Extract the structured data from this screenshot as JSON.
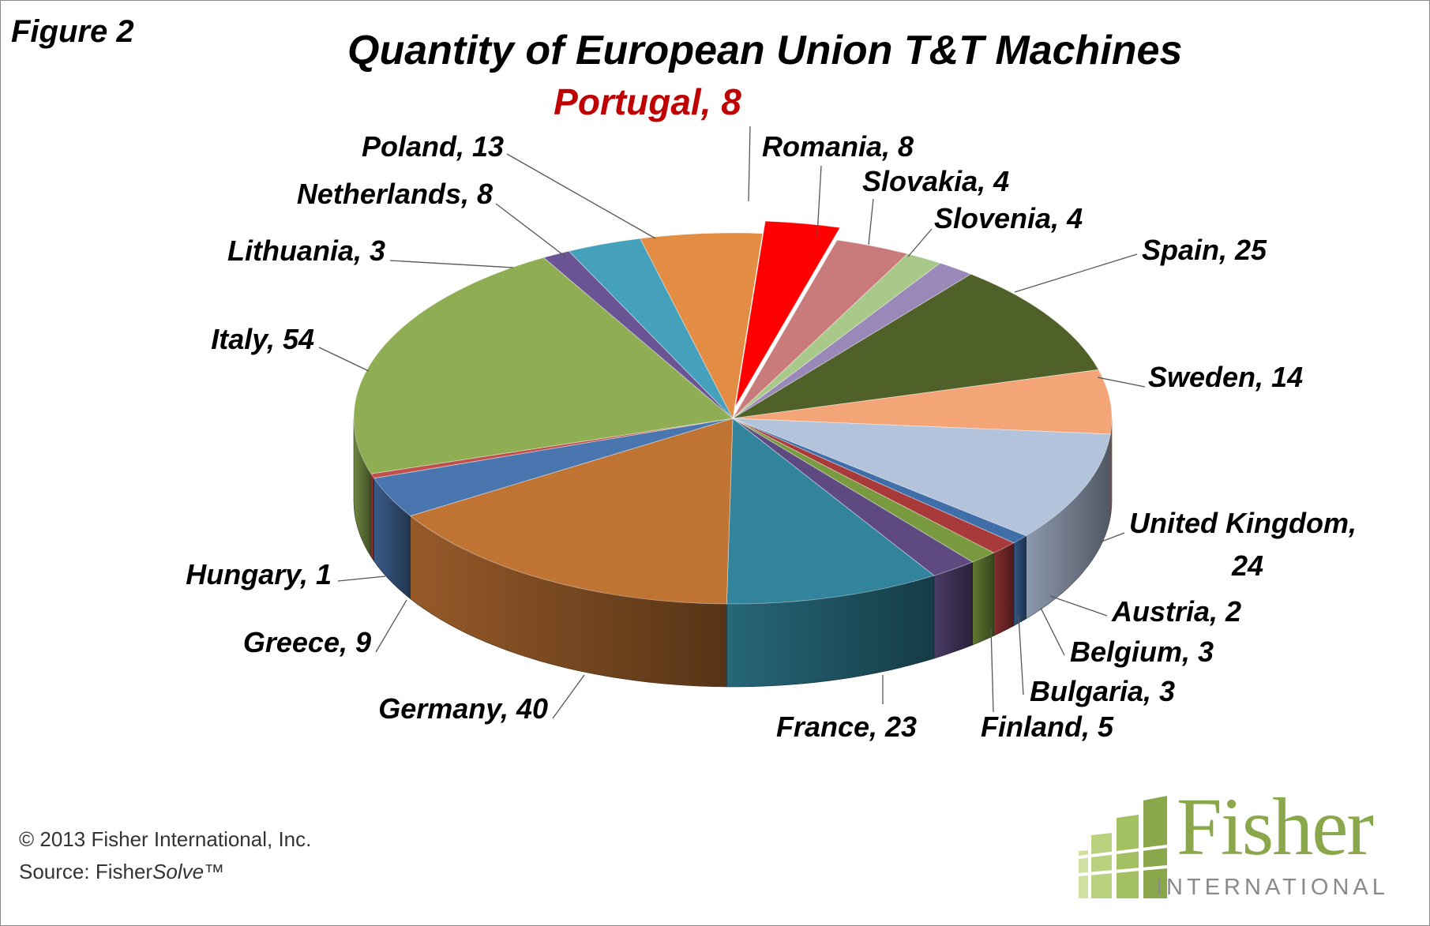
{
  "figure_label": "Figure 2",
  "footer": {
    "copyright": "© 2013 Fisher International, Inc.",
    "source_prefix": "Source: Fisher",
    "source_italic": "Solve",
    "source_suffix": "™"
  },
  "logo": {
    "word": "Fisher",
    "sub": "INTERNATIONAL",
    "icon": "green-grid-logo-icon"
  },
  "chart_data": {
    "type": "pie",
    "title": "Quantity  of  European Union T&T Machines",
    "highlight": "Portugal",
    "slices": [
      {
        "name": "Portugal",
        "value": 8,
        "color": "#ff0000",
        "label": "Portugal, 8"
      },
      {
        "name": "Romania",
        "value": 8,
        "color": "#c97b7b",
        "label": "Romania, 8"
      },
      {
        "name": "Slovakia",
        "value": 4,
        "color": "#a9c98a",
        "label": "Slovakia, 4"
      },
      {
        "name": "Slovenia",
        "value": 4,
        "color": "#9a88b8",
        "label": "Slovenia, 4"
      },
      {
        "name": "Spain",
        "value": 25,
        "color": "#4f6128",
        "label": "Spain, 25"
      },
      {
        "name": "Sweden",
        "value": 14,
        "color": "#f4a578",
        "label": "Sweden, 14"
      },
      {
        "name": "United Kingdom",
        "value": 24,
        "color": "#b4c3dc",
        "label": "United Kingdom,",
        "label2": "24"
      },
      {
        "name": "Austria",
        "value": 2,
        "color": "#3f6ea8",
        "label": "Austria, 2"
      },
      {
        "name": "Belgium",
        "value": 3,
        "color": "#a83a3a",
        "label": "Belgium, 3"
      },
      {
        "name": "Bulgaria",
        "value": 3,
        "color": "#7a9a3f",
        "label": "Bulgaria, 3"
      },
      {
        "name": "Finland",
        "value": 5,
        "color": "#5e4a80",
        "label": "Finland, 5"
      },
      {
        "name": "France",
        "value": 23,
        "color": "#31849b",
        "label": "France, 23"
      },
      {
        "name": "Germany",
        "value": 40,
        "color": "#c07434",
        "label": "Germany, 40"
      },
      {
        "name": "Greece",
        "value": 9,
        "color": "#4a76b0",
        "label": "Greece, 9"
      },
      {
        "name": "Hungary",
        "value": 1,
        "color": "#c0504d",
        "label": "Hungary, 1"
      },
      {
        "name": "Italy",
        "value": 54,
        "color": "#8fad52",
        "label": "Italy, 54"
      },
      {
        "name": "Lithuania",
        "value": 3,
        "color": "#6a5494",
        "label": "Lithuania, 3"
      },
      {
        "name": "Netherlands",
        "value": 8,
        "color": "#45a1bb",
        "label": "Netherlands, 8"
      },
      {
        "name": "Poland",
        "value": 13,
        "color": "#e28c44",
        "label": "Poland, 13"
      }
    ]
  }
}
